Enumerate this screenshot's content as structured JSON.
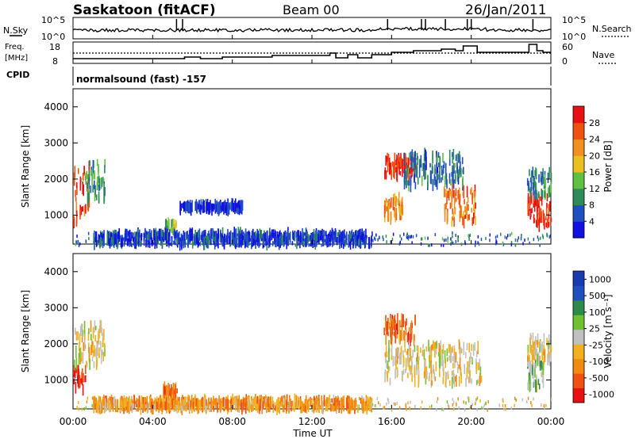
{
  "header": {
    "station": "Saskatoon (fitACF)",
    "beam": "Beam 00",
    "date": "26/Jan/2011"
  },
  "noise_panel": {
    "left_label": "N.Sky",
    "right_label": "N.Search",
    "left_ticks": [
      "10^5",
      "10^0"
    ],
    "right_ticks": [
      "10^5",
      "10^0"
    ]
  },
  "freq_panel": {
    "left_label_top": "Freq.",
    "left_label_bottom": "[MHz]",
    "right_label": "Nave",
    "left_ticks": [
      "18",
      "8"
    ],
    "right_ticks": [
      "60",
      "0"
    ]
  },
  "cpid": {
    "label": "CPID",
    "value": "normalsound (fast) -157"
  },
  "colors": {
    "power_scale": [
      "#1010e0",
      "#2050c0",
      "#2e8a5a",
      "#60c040",
      "#e8c020",
      "#f09020",
      "#f05010",
      "#e81010"
    ],
    "velocity_scale": [
      "#e81010",
      "#f05010",
      "#f08a10",
      "#f0b020",
      "#c0c0c0",
      "#70c030",
      "#2e8a4a",
      "#2050c0",
      "#1a3ab0"
    ]
  },
  "chart_data": [
    {
      "type": "heatmap",
      "name": "power",
      "ylabel": "Slant Range [km]",
      "yticks": [
        "1000",
        "2000",
        "3000",
        "4000"
      ],
      "ylim": [
        200,
        4500
      ],
      "colorbar_label": "Power [dB]",
      "colorbar_ticks": [
        "4",
        "8",
        "12",
        "16",
        "20",
        "24",
        "28"
      ],
      "regions": [
        {
          "t": [
            0.0,
            0.8
          ],
          "r": [
            700,
            2400
          ],
          "level": 0.85
        },
        {
          "t": [
            0.6,
            1.6
          ],
          "r": [
            1400,
            2500
          ],
          "level": 0.35
        },
        {
          "t": [
            4.6,
            5.2
          ],
          "r": [
            550,
            800
          ],
          "level": 0.45
        },
        {
          "t": [
            5.3,
            8.5
          ],
          "r": [
            1150,
            1300
          ],
          "level": 0.1
        },
        {
          "t": [
            1.0,
            15.0
          ],
          "r": [
            200,
            500
          ],
          "level": 0.15
        },
        {
          "t": [
            15.6,
            17.2
          ],
          "r": [
            2100,
            2600
          ],
          "level": 0.9
        },
        {
          "t": [
            15.6,
            16.6
          ],
          "r": [
            900,
            1500
          ],
          "level": 0.7
        },
        {
          "t": [
            16.6,
            19.6
          ],
          "r": [
            1800,
            2700
          ],
          "level": 0.25
        },
        {
          "t": [
            18.6,
            20.2
          ],
          "r": [
            800,
            1700
          ],
          "level": 0.75
        },
        {
          "t": [
            22.8,
            24.0
          ],
          "r": [
            700,
            1500
          ],
          "level": 0.9
        },
        {
          "t": [
            22.8,
            24.0
          ],
          "r": [
            1500,
            2200
          ],
          "level": 0.3
        }
      ]
    },
    {
      "type": "heatmap",
      "name": "velocity",
      "ylabel": "Slant Range [km]",
      "xlabel": "Time UT",
      "yticks": [
        "1000",
        "2000",
        "3000",
        "4000"
      ],
      "ylim": [
        200,
        4500
      ],
      "colorbar_label": "Velocity [m s⁻¹]",
      "colorbar_ticks": [
        "1000",
        "500",
        "100",
        "25",
        "-25",
        "-100",
        "-500",
        "-1000"
      ],
      "xticks": [
        "00:00",
        "04:00",
        "08:00",
        "12:00",
        "16:00",
        "20:00",
        "00:00"
      ],
      "regions": [
        {
          "t": [
            0.0,
            0.6
          ],
          "r": [
            700,
            1300
          ],
          "level": 0.05
        },
        {
          "t": [
            0.0,
            1.6
          ],
          "r": [
            1400,
            2500
          ],
          "level": 0.45
        },
        {
          "t": [
            4.5,
            5.2
          ],
          "r": [
            550,
            800
          ],
          "level": 0.25
        },
        {
          "t": [
            1.0,
            15.0
          ],
          "r": [
            200,
            450
          ],
          "level": 0.32
        },
        {
          "t": [
            15.6,
            17.2
          ],
          "r": [
            2100,
            2700
          ],
          "level": 0.2
        },
        {
          "t": [
            15.6,
            20.5
          ],
          "r": [
            900,
            2000
          ],
          "level": 0.45
        },
        {
          "t": [
            22.8,
            23.6
          ],
          "r": [
            800,
            1500
          ],
          "level": 0.58
        },
        {
          "t": [
            22.8,
            24.0
          ],
          "r": [
            1500,
            2200
          ],
          "level": 0.45
        }
      ]
    }
  ]
}
